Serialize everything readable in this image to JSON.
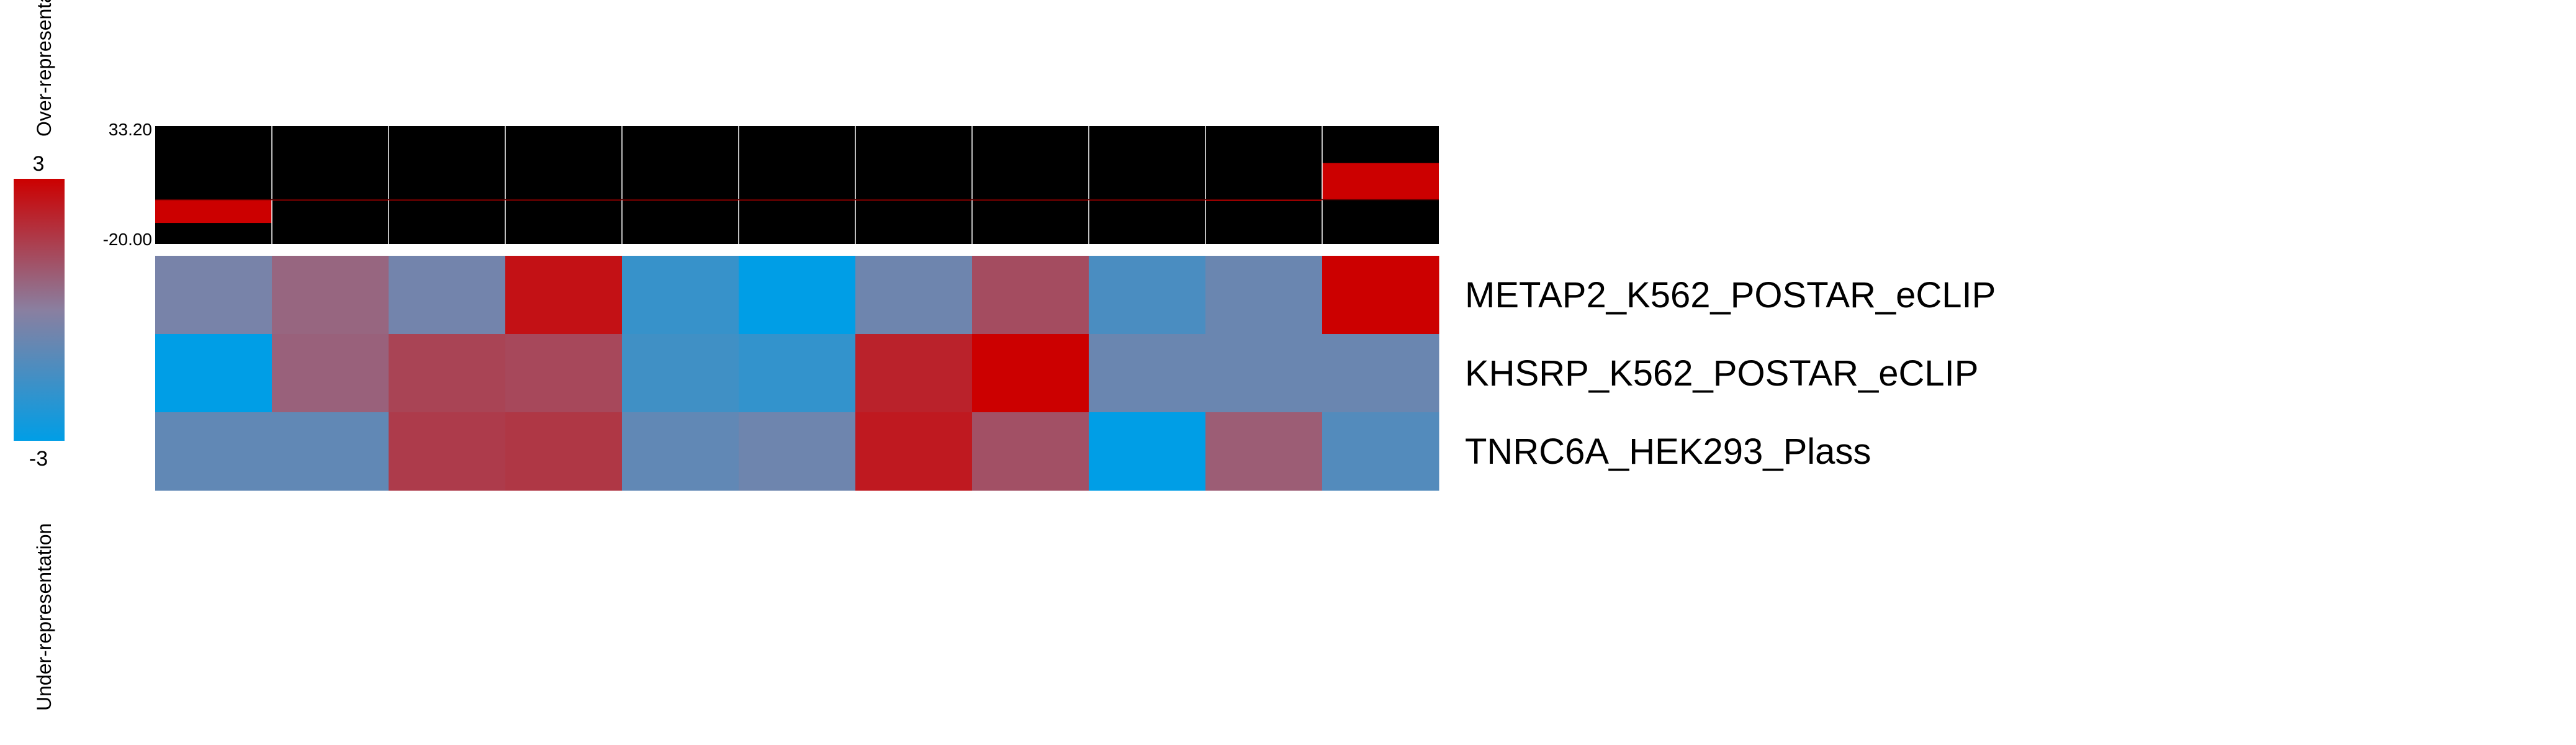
{
  "chart_data": {
    "type": "heatmap",
    "colorbar": {
      "max_label": "3",
      "min_label": "-3",
      "over_label": "Over-representation",
      "under_label": "Under-representation",
      "range": [
        -3,
        3
      ],
      "colors": {
        "low": "#009ee6",
        "mid": "#8a7fa0",
        "high": "#cc0000"
      }
    },
    "bar_panel": {
      "ymax_label": "33.20",
      "ymin_label": "-20.00",
      "ylim": [
        -20.0,
        33.2
      ],
      "bar_color": "#cc0000",
      "background": "#000000",
      "values": [
        -10.5,
        -0.4,
        -0.1,
        -0.1,
        -0.1,
        -0.1,
        -0.1,
        -0.1,
        -0.3,
        -0.6,
        16.5
      ]
    },
    "rows": [
      {
        "label": "METAP2_K562_POSTAR_eCLIP",
        "values": [
          -0.4,
          0.6,
          -0.5,
          2.6,
          -1.8,
          -3.0,
          -0.6,
          1.2,
          -1.4,
          -0.7,
          3.0
        ]
      },
      {
        "label": "KHSRP_K562_POSTAR_eCLIP",
        "values": [
          -3.0,
          0.7,
          1.4,
          1.3,
          -1.6,
          -1.9,
          2.2,
          3.0,
          -0.7,
          -0.7,
          -0.7
        ]
      },
      {
        "label": "TNRC6A_HEK293_Plass",
        "values": [
          -0.9,
          -0.9,
          1.6,
          1.7,
          -0.9,
          -0.6,
          2.4,
          1.1,
          -3.0,
          0.8,
          -1.2
        ]
      }
    ]
  }
}
